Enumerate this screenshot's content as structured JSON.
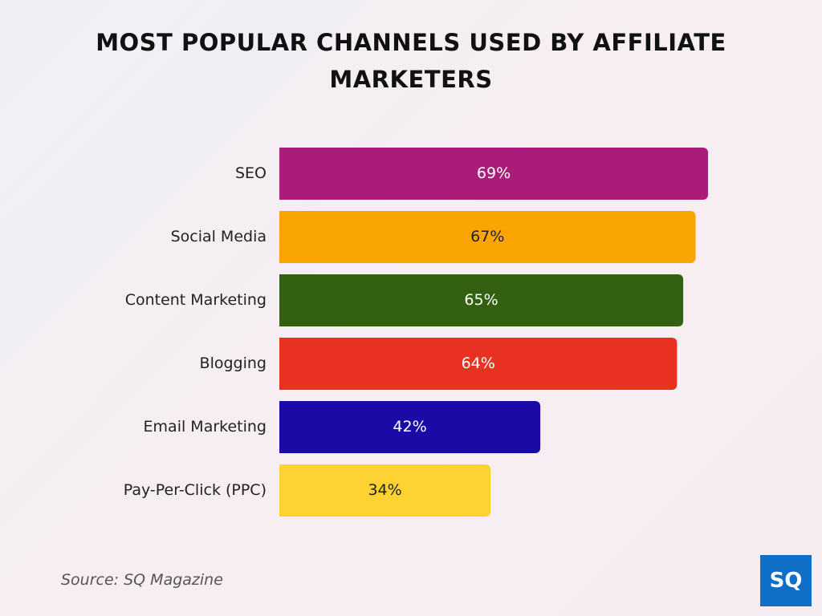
{
  "chart_data": {
    "type": "bar",
    "orientation": "horizontal",
    "title": "MOST POPULAR CHANNELS USED BY AFFILIATE MARKETERS",
    "categories": [
      "SEO",
      "Social Media",
      "Content Marketing",
      "Blogging",
      "Email Marketing",
      "Pay-Per-Click (PPC)"
    ],
    "values": [
      69,
      67,
      65,
      64,
      42,
      34
    ],
    "value_labels": [
      "69%",
      "67%",
      "65%",
      "64%",
      "42%",
      "34%"
    ],
    "colors": [
      "#a91c7a",
      "#fba502",
      "#346011",
      "#e93122",
      "#1a0aa6",
      "#fdd232"
    ],
    "source": "Source: SQ Magazine",
    "logo": "SQ"
  }
}
